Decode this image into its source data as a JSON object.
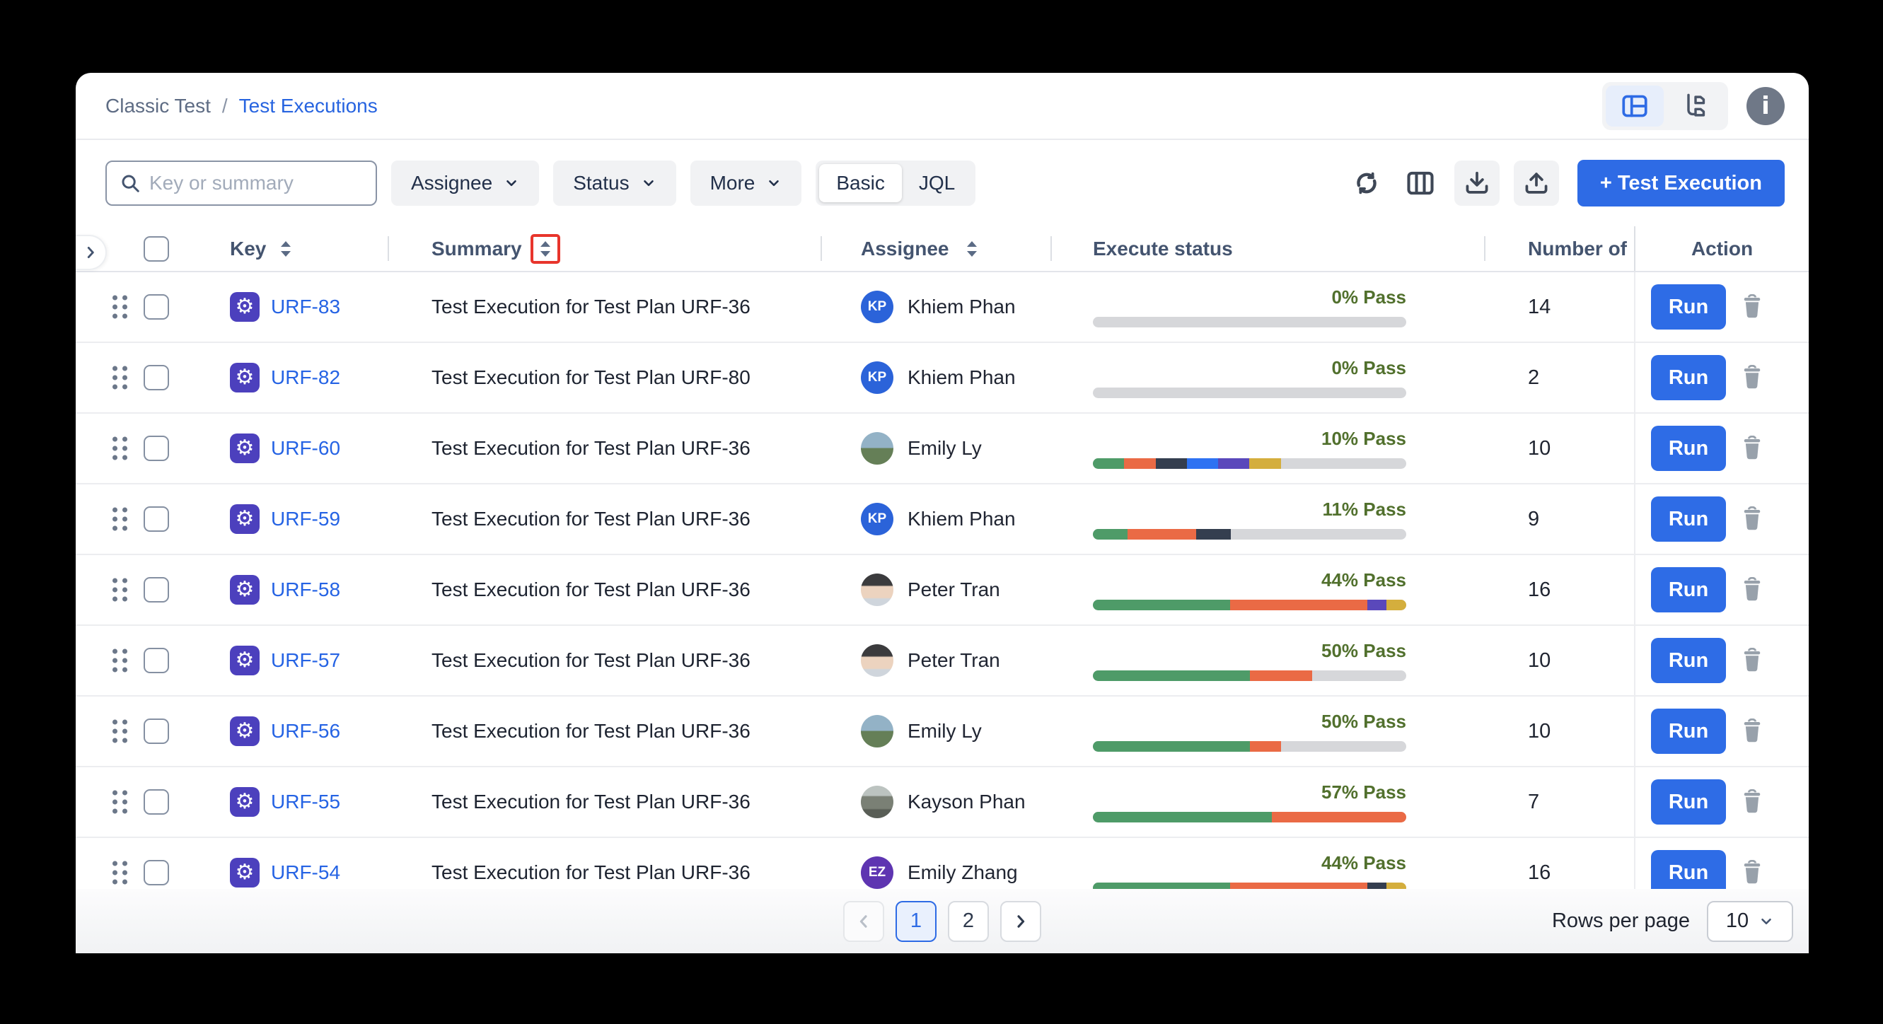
{
  "breadcrumb": {
    "parent": "Classic Test",
    "separator": "/",
    "current": "Test Executions"
  },
  "view_toggle": {
    "selected": "panel-view",
    "options": [
      "panel-view",
      "tree-view"
    ]
  },
  "toolbar": {
    "search_placeholder": "Key or summary",
    "filters": [
      {
        "label": "Assignee"
      },
      {
        "label": "Status"
      },
      {
        "label": "More"
      }
    ],
    "mode_toggle": {
      "options": [
        "Basic",
        "JQL"
      ],
      "selected": "Basic"
    },
    "create_button_label": "+ Test Execution"
  },
  "annotation": {
    "color": "#e8352c",
    "target": "summary-sort-icon"
  },
  "status_colors": {
    "pass": "#4e9b68",
    "fail": "#ea6a45",
    "blocked": "#343e4f",
    "retest": "#2e72f2",
    "pending": "#5a48bb",
    "undefined": "#d4ae3d",
    "todo": "#d6d7da"
  },
  "table": {
    "run_label": "Run",
    "columns": [
      {
        "label": "Key",
        "sortable": true
      },
      {
        "label": "Summary",
        "sortable": true,
        "annotated": true
      },
      {
        "label": "Assignee",
        "sortable": true
      },
      {
        "label": "Execute status",
        "sortable": false
      },
      {
        "label": "Number of",
        "sortable": false
      },
      {
        "label": "Action",
        "sortable": false
      }
    ],
    "rows": [
      {
        "key": "URF-83",
        "summary": "Test Execution for Test Plan URF-36",
        "assignee": "Khiem Phan",
        "avatar": {
          "type": "initials",
          "text": "KP",
          "color": "#2b63d9"
        },
        "pass_label": "0% Pass",
        "progress": [],
        "count": "14"
      },
      {
        "key": "URF-82",
        "summary": "Test Execution for Test Plan URF-80",
        "assignee": "Khiem Phan",
        "avatar": {
          "type": "initials",
          "text": "KP",
          "color": "#2b63d9"
        },
        "pass_label": "0% Pass",
        "progress": [],
        "count": "2"
      },
      {
        "key": "URF-60",
        "summary": "Test Execution for Test Plan URF-36",
        "assignee": "Emily Ly",
        "avatar": {
          "type": "photo",
          "photo": "emily-ly"
        },
        "pass_label": "10% Pass",
        "progress": [
          {
            "status": "pass",
            "pct": 10
          },
          {
            "status": "fail",
            "pct": 10
          },
          {
            "status": "blocked",
            "pct": 10
          },
          {
            "status": "retest",
            "pct": 10
          },
          {
            "status": "pending",
            "pct": 10
          },
          {
            "status": "undefined",
            "pct": 10
          }
        ],
        "count": "10"
      },
      {
        "key": "URF-59",
        "summary": "Test Execution for Test Plan URF-36",
        "assignee": "Khiem Phan",
        "avatar": {
          "type": "initials",
          "text": "KP",
          "color": "#2b63d9"
        },
        "pass_label": "11% Pass",
        "progress": [
          {
            "status": "pass",
            "pct": 11
          },
          {
            "status": "fail",
            "pct": 22
          },
          {
            "status": "blocked",
            "pct": 11
          }
        ],
        "count": "9"
      },
      {
        "key": "URF-58",
        "summary": "Test Execution for Test Plan URF-36",
        "assignee": "Peter Tran",
        "avatar": {
          "type": "photo",
          "photo": "peter-tran"
        },
        "pass_label": "44% Pass",
        "progress": [
          {
            "status": "pass",
            "pct": 43.75
          },
          {
            "status": "fail",
            "pct": 43.75
          },
          {
            "status": "pending",
            "pct": 6.25
          },
          {
            "status": "undefined",
            "pct": 6.25
          }
        ],
        "count": "16"
      },
      {
        "key": "URF-57",
        "summary": "Test Execution for Test Plan URF-36",
        "assignee": "Peter Tran",
        "avatar": {
          "type": "photo",
          "photo": "peter-tran"
        },
        "pass_label": "50% Pass",
        "progress": [
          {
            "status": "pass",
            "pct": 50
          },
          {
            "status": "fail",
            "pct": 20
          }
        ],
        "count": "10"
      },
      {
        "key": "URF-56",
        "summary": "Test Execution for Test Plan URF-36",
        "assignee": "Emily Ly",
        "avatar": {
          "type": "photo",
          "photo": "emily-ly"
        },
        "pass_label": "50% Pass",
        "progress": [
          {
            "status": "pass",
            "pct": 50
          },
          {
            "status": "fail",
            "pct": 10
          }
        ],
        "count": "10"
      },
      {
        "key": "URF-55",
        "summary": "Test Execution for Test Plan URF-36",
        "assignee": "Kayson Phan",
        "avatar": {
          "type": "photo",
          "photo": "kayson-phan"
        },
        "pass_label": "57% Pass",
        "progress": [
          {
            "status": "pass",
            "pct": 57.1
          },
          {
            "status": "fail",
            "pct": 42.9
          }
        ],
        "count": "7"
      },
      {
        "key": "URF-54",
        "summary": "Test Execution for Test Plan URF-36",
        "assignee": "Emily Zhang",
        "avatar": {
          "type": "initials",
          "text": "EZ",
          "color": "#5e35b1"
        },
        "pass_label": "44% Pass",
        "progress": [
          {
            "status": "pass",
            "pct": 43.75
          },
          {
            "status": "fail",
            "pct": 43.75
          },
          {
            "status": "blocked",
            "pct": 6.25
          },
          {
            "status": "undefined",
            "pct": 6.25
          }
        ],
        "count": "16"
      }
    ]
  },
  "pagination": {
    "pages": [
      "1",
      "2"
    ],
    "current": "1",
    "rows_per_page_label": "Rows per page",
    "rows_per_page_value": "10"
  }
}
